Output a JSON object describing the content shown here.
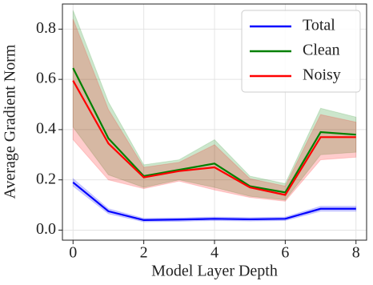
{
  "chart_data": {
    "type": "line",
    "xlabel": "Model Layer Depth",
    "ylabel": "Average Gradient Norm",
    "x": [
      0,
      1,
      2,
      3,
      4,
      5,
      6,
      7,
      8
    ],
    "xlim": [
      -0.3,
      8.3
    ],
    "xticks": [
      0,
      2,
      4,
      6,
      8
    ],
    "ylim": [
      -0.04,
      0.9
    ],
    "yticks": [
      {
        "value": 0,
        "label": "0.0"
      },
      0.2,
      0.4,
      0.6,
      0.8
    ],
    "grid": true,
    "legend": "upper right",
    "series": [
      {
        "name": "Total",
        "color": "#0000ff",
        "values": [
          0.19,
          0.075,
          0.04,
          0.042,
          0.045,
          0.043,
          0.045,
          0.085,
          0.085
        ],
        "lower": [
          0.175,
          0.065,
          0.033,
          0.035,
          0.038,
          0.036,
          0.038,
          0.075,
          0.075
        ],
        "upper": [
          0.205,
          0.085,
          0.047,
          0.049,
          0.052,
          0.05,
          0.052,
          0.095,
          0.095
        ]
      },
      {
        "name": "Clean",
        "color": "#008000",
        "values": [
          0.645,
          0.365,
          0.215,
          0.24,
          0.265,
          0.175,
          0.15,
          0.39,
          0.38
        ],
        "lower": [
          0.41,
          0.22,
          0.17,
          0.2,
          0.17,
          0.135,
          0.12,
          0.3,
          0.31
        ],
        "upper": [
          0.875,
          0.51,
          0.26,
          0.28,
          0.36,
          0.215,
          0.185,
          0.485,
          0.45
        ]
      },
      {
        "name": "Noisy",
        "color": "#ff0000",
        "values": [
          0.595,
          0.345,
          0.21,
          0.235,
          0.25,
          0.17,
          0.14,
          0.37,
          0.37
        ],
        "lower": [
          0.36,
          0.2,
          0.165,
          0.195,
          0.16,
          0.13,
          0.115,
          0.28,
          0.29
        ],
        "upper": [
          0.84,
          0.48,
          0.25,
          0.27,
          0.34,
          0.205,
          0.175,
          0.46,
          0.43
        ]
      }
    ]
  }
}
